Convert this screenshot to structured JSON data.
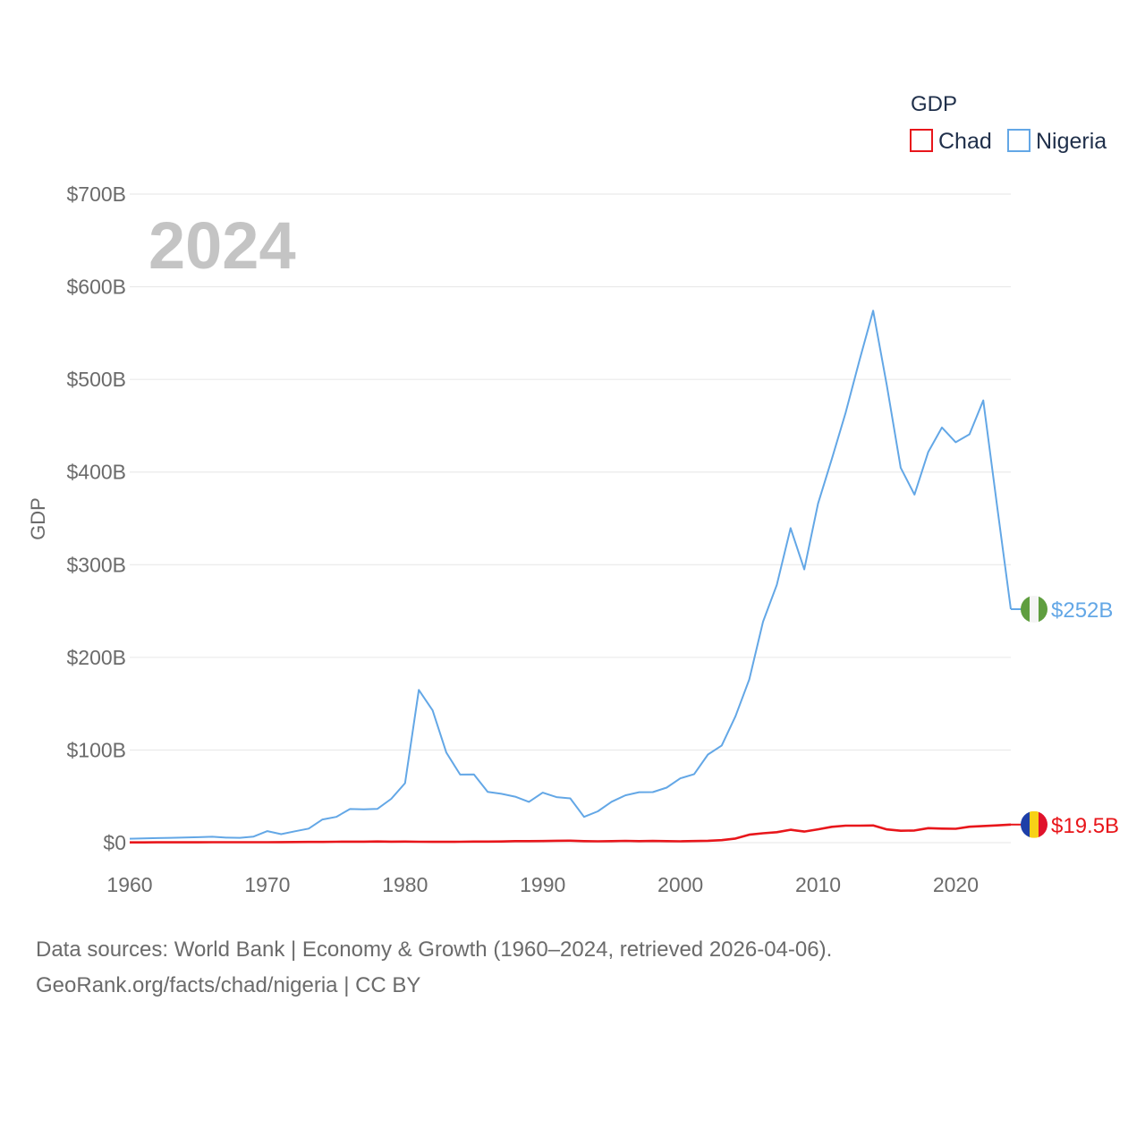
{
  "chart_data": {
    "type": "line",
    "title": "GDP",
    "ylabel": "GDP",
    "xlabel": "",
    "year_overlay": "2024",
    "xlim": [
      1960,
      2024
    ],
    "ylim": [
      0,
      700
    ],
    "y_unit": "billion USD",
    "x_ticks": [
      "1960",
      "1970",
      "1980",
      "1990",
      "2000",
      "2010",
      "2020"
    ],
    "y_ticks": [
      {
        "value": 0,
        "label": "$0"
      },
      {
        "value": 100,
        "label": "$100B"
      },
      {
        "value": 200,
        "label": "$200B"
      },
      {
        "value": 300,
        "label": "$300B"
      },
      {
        "value": 400,
        "label": "$400B"
      },
      {
        "value": 500,
        "label": "$500B"
      },
      {
        "value": 600,
        "label": "$600B"
      },
      {
        "value": 700,
        "label": "$700B"
      }
    ],
    "legend": {
      "title": "GDP",
      "position": "top-right"
    },
    "x": [
      1960,
      1961,
      1962,
      1963,
      1964,
      1965,
      1966,
      1967,
      1968,
      1969,
      1970,
      1971,
      1972,
      1973,
      1974,
      1975,
      1976,
      1977,
      1978,
      1979,
      1980,
      1981,
      1982,
      1983,
      1984,
      1985,
      1986,
      1987,
      1988,
      1989,
      1990,
      1991,
      1992,
      1993,
      1994,
      1995,
      1996,
      1997,
      1998,
      1999,
      2000,
      2001,
      2002,
      2003,
      2004,
      2005,
      2006,
      2007,
      2008,
      2009,
      2010,
      2011,
      2012,
      2013,
      2014,
      2015,
      2016,
      2017,
      2018,
      2019,
      2020,
      2021,
      2022,
      2023,
      2024
    ],
    "series": [
      {
        "name": "Chad",
        "color": "#e8161b",
        "end_label": "$19.5B",
        "values": [
          0.3,
          0.3,
          0.4,
          0.4,
          0.4,
          0.4,
          0.5,
          0.5,
          0.5,
          0.5,
          0.5,
          0.6,
          0.7,
          0.8,
          0.8,
          1.0,
          1.1,
          1.1,
          1.3,
          1.1,
          1.2,
          1.0,
          0.9,
          0.9,
          1.0,
          1.2,
          1.2,
          1.3,
          1.6,
          1.6,
          1.7,
          2.0,
          2.1,
          1.6,
          1.4,
          1.6,
          1.9,
          1.6,
          1.8,
          1.6,
          1.4,
          1.7,
          2.0,
          2.7,
          4.4,
          8.6,
          10.1,
          11.3,
          13.9,
          12.0,
          14.4,
          17.1,
          18.3,
          18.3,
          18.5,
          14.3,
          12.8,
          13.1,
          15.6,
          15.2,
          15.0,
          17.2,
          18.0,
          18.6,
          19.5
        ]
      },
      {
        "name": "Nigeria",
        "color": "#63a7e6",
        "end_label": "$252B",
        "values": [
          4.2,
          4.5,
          4.9,
          5.2,
          5.5,
          5.9,
          6.4,
          5.4,
          5.2,
          6.6,
          12.5,
          9.2,
          12.3,
          15.2,
          25.0,
          27.8,
          36.3,
          36.0,
          36.5,
          47.3,
          64.2,
          164.8,
          142.8,
          97.1,
          73.5,
          73.7,
          54.8,
          52.7,
          49.6,
          44.0,
          54.0,
          49.1,
          47.8,
          27.8,
          33.8,
          44.1,
          51.1,
          54.5,
          54.6,
          59.4,
          69.4,
          74.0,
          95.1,
          104.9,
          136.4,
          176.1,
          238.5,
          278.3,
          339.5,
          295.0,
          366.0,
          414.1,
          463.9,
          520.1,
          574.2,
          493.0,
          404.6,
          375.7,
          421.7,
          448.1,
          432.2,
          440.8,
          477.4,
          363.8,
          252.0
        ],
        "values_note": ""
      }
    ]
  },
  "source": {
    "line1": "Data sources: World Bank | Economy & Growth (1960–2024, retrieved 2026-04-06).",
    "line2": "GeoRank.org/facts/chad/nigeria | CC BY"
  }
}
